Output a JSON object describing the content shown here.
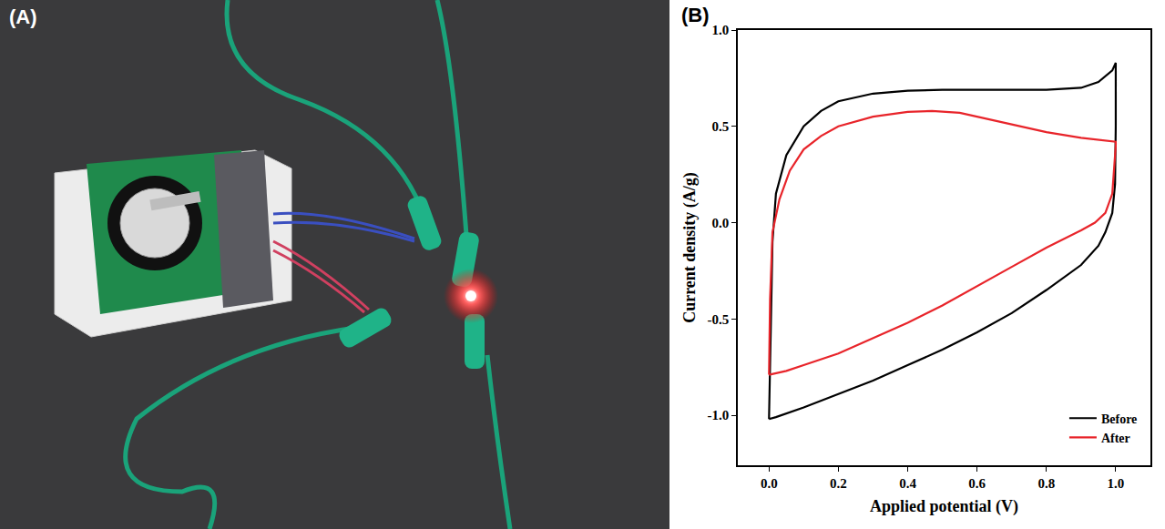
{
  "panel_labels": [
    "(A)",
    "(B)"
  ],
  "chart_data": {
    "type": "line",
    "x_label": "Applied potential (V)",
    "y_label": "Current density (A/g)",
    "xlim": [
      -0.09,
      1.1
    ],
    "ylim": [
      -1.26,
      1.0
    ],
    "xticks": [
      {
        "value": 0,
        "label": "0.0"
      },
      {
        "value": 0.2,
        "label": "0.2"
      },
      {
        "value": 0.4,
        "label": "0.4"
      },
      {
        "value": 0.6,
        "label": "0.6"
      },
      {
        "value": 0.8,
        "label": "0.8"
      },
      {
        "value": 1.0,
        "label": "1.0"
      }
    ],
    "yticks": [
      {
        "value": -1.0,
        "label": "-1.0"
      },
      {
        "value": -0.5,
        "label": "-0.5"
      },
      {
        "value": 0,
        "label": "0.0"
      },
      {
        "value": 0.5,
        "label": "0.5"
      },
      {
        "value": 1.0,
        "label": "1.0"
      }
    ],
    "grid": false,
    "legend": "lower right",
    "series": [
      {
        "name": "Before",
        "color": "#000000",
        "x": [
          0,
          0.005,
          0.01,
          0.02,
          0.05,
          0.1,
          0.15,
          0.2,
          0.3,
          0.4,
          0.5,
          0.6,
          0.7,
          0.8,
          0.9,
          0.95,
          0.99,
          1.0,
          1.0,
          0.998,
          0.99,
          0.97,
          0.95,
          0.9,
          0.8,
          0.7,
          0.6,
          0.5,
          0.4,
          0.3,
          0.2,
          0.1,
          0.02,
          0
        ],
        "values": [
          -1.02,
          -0.5,
          -0.1,
          0.15,
          0.35,
          0.5,
          0.58,
          0.63,
          0.67,
          0.685,
          0.69,
          0.69,
          0.69,
          0.69,
          0.7,
          0.73,
          0.79,
          0.83,
          0.5,
          0.2,
          0.05,
          -0.05,
          -0.12,
          -0.22,
          -0.35,
          -0.47,
          -0.57,
          -0.66,
          -0.74,
          -0.82,
          -0.89,
          -0.96,
          -1.01,
          -1.02
        ]
      },
      {
        "name": "After",
        "color": "#e8242a",
        "x": [
          0,
          0.003,
          0.01,
          0.03,
          0.06,
          0.1,
          0.15,
          0.2,
          0.3,
          0.4,
          0.47,
          0.55,
          0.6,
          0.7,
          0.8,
          0.9,
          0.95,
          1.0,
          1.0,
          0.99,
          0.97,
          0.94,
          0.9,
          0.8,
          0.7,
          0.6,
          0.5,
          0.4,
          0.3,
          0.2,
          0.1,
          0.05,
          0
        ],
        "values": [
          -0.79,
          -0.4,
          -0.05,
          0.12,
          0.27,
          0.38,
          0.45,
          0.5,
          0.55,
          0.575,
          0.58,
          0.57,
          0.55,
          0.51,
          0.47,
          0.44,
          0.43,
          0.42,
          0.4,
          0.15,
          0.05,
          0.0,
          -0.04,
          -0.13,
          -0.23,
          -0.33,
          -0.43,
          -0.52,
          -0.6,
          -0.68,
          -0.74,
          -0.77,
          -0.79
        ]
      }
    ]
  }
}
